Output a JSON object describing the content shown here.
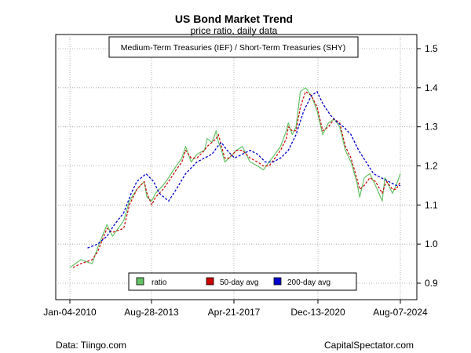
{
  "chart_data": {
    "type": "line",
    "title": "US Bond Market Trend",
    "subtitle": "price ratio, daily data",
    "annotation": "Medium-Term Treasuries (IEF) / Short-Term Treasuries (SHY)",
    "x_ticks": [
      "Jan-04-2010",
      "Aug-28-2013",
      "Apr-21-2017",
      "Dec-13-2020",
      "Aug-07-2024"
    ],
    "y_ticks": [
      0.9,
      1.0,
      1.1,
      1.2,
      1.3,
      1.4,
      1.5
    ],
    "ylim": [
      0.88,
      1.55
    ],
    "axis_side": "right",
    "grid": true,
    "legend_position": "bottom-center",
    "colors": {
      "ratio": "#66c266",
      "avg50": "#cc0000",
      "avg200": "#0000cc"
    },
    "series": [
      {
        "name": "ratio",
        "style": "line",
        "x": [
          "2010-01-04",
          "2010-07-01",
          "2011-01-01",
          "2011-04-01",
          "2011-09-01",
          "2011-12-01",
          "2012-06-01",
          "2012-09-01",
          "2013-01-01",
          "2013-05-01",
          "2013-06-15",
          "2013-09-01",
          "2013-11-01",
          "2014-03-01",
          "2014-06-01",
          "2014-10-01",
          "2015-01-01",
          "2015-03-01",
          "2015-06-01",
          "2015-09-01",
          "2016-01-01",
          "2016-02-15",
          "2016-05-01",
          "2016-07-08",
          "2016-08-15",
          "2016-10-01",
          "2016-11-25",
          "2017-02-01",
          "2017-06-01",
          "2017-09-01",
          "2018-01-01",
          "2018-05-01",
          "2018-08-01",
          "2018-11-01",
          "2019-02-01",
          "2019-05-01",
          "2019-08-01",
          "2019-09-01",
          "2019-11-01",
          "2020-01-01",
          "2020-03-09",
          "2020-06-01",
          "2020-09-01",
          "2020-12-01",
          "2021-03-01",
          "2021-06-01",
          "2021-09-01",
          "2021-12-01",
          "2022-01-01",
          "2022-03-01",
          "2022-06-01",
          "2022-09-01",
          "2022-10-20",
          "2023-01-01",
          "2023-04-01",
          "2023-07-01",
          "2023-10-19",
          "2023-12-01",
          "2024-01-01",
          "2024-04-01",
          "2024-06-01",
          "2024-08-07"
        ],
        "values": [
          0.94,
          0.96,
          0.95,
          0.99,
          1.05,
          1.02,
          1.06,
          1.11,
          1.14,
          1.16,
          1.12,
          1.11,
          1.13,
          1.15,
          1.17,
          1.2,
          1.22,
          1.25,
          1.21,
          1.23,
          1.24,
          1.27,
          1.26,
          1.29,
          1.26,
          1.24,
          1.21,
          1.22,
          1.24,
          1.25,
          1.21,
          1.2,
          1.19,
          1.21,
          1.23,
          1.25,
          1.29,
          1.31,
          1.28,
          1.3,
          1.39,
          1.4,
          1.38,
          1.34,
          1.28,
          1.31,
          1.32,
          1.3,
          1.28,
          1.24,
          1.21,
          1.16,
          1.12,
          1.17,
          1.18,
          1.15,
          1.11,
          1.17,
          1.16,
          1.13,
          1.15,
          1.18
        ]
      },
      {
        "name": "50-day avg",
        "style": "dashed",
        "x": [
          "2010-02-24",
          "2010-07-01",
          "2011-01-01",
          "2011-04-01",
          "2011-09-01",
          "2011-12-01",
          "2012-06-01",
          "2012-09-01",
          "2013-01-01",
          "2013-05-01",
          "2013-06-15",
          "2013-09-01",
          "2013-11-01",
          "2014-03-01",
          "2014-06-01",
          "2014-10-01",
          "2015-01-01",
          "2015-03-01",
          "2015-06-01",
          "2015-09-01",
          "2016-01-01",
          "2016-02-15",
          "2016-05-01",
          "2016-07-08",
          "2016-08-15",
          "2016-10-01",
          "2016-11-25",
          "2017-02-01",
          "2017-06-01",
          "2017-09-01",
          "2018-01-01",
          "2018-05-01",
          "2018-08-01",
          "2018-11-01",
          "2019-02-01",
          "2019-05-01",
          "2019-08-01",
          "2019-09-01",
          "2019-11-01",
          "2020-01-01",
          "2020-03-09",
          "2020-06-01",
          "2020-09-01",
          "2020-12-01",
          "2021-03-01",
          "2021-06-01",
          "2021-09-01",
          "2021-12-01",
          "2022-01-01",
          "2022-03-01",
          "2022-06-01",
          "2022-09-01",
          "2022-10-20",
          "2023-01-01",
          "2023-04-01",
          "2023-07-01",
          "2023-10-19",
          "2023-12-01",
          "2024-01-01",
          "2024-04-01",
          "2024-06-01",
          "2024-08-07"
        ],
        "values": [
          0.94,
          0.95,
          0.96,
          0.98,
          1.04,
          1.03,
          1.04,
          1.1,
          1.14,
          1.16,
          1.13,
          1.1,
          1.12,
          1.14,
          1.16,
          1.19,
          1.21,
          1.24,
          1.22,
          1.22,
          1.24,
          1.25,
          1.26,
          1.27,
          1.28,
          1.25,
          1.22,
          1.22,
          1.24,
          1.24,
          1.22,
          1.21,
          1.2,
          1.2,
          1.22,
          1.24,
          1.27,
          1.3,
          1.29,
          1.29,
          1.35,
          1.39,
          1.38,
          1.35,
          1.29,
          1.3,
          1.32,
          1.31,
          1.29,
          1.25,
          1.22,
          1.17,
          1.14,
          1.15,
          1.17,
          1.16,
          1.13,
          1.15,
          1.16,
          1.14,
          1.14,
          1.16
        ]
      },
      {
        "name": "200-day avg",
        "style": "dashed",
        "x": [
          "2010-10-19",
          "2011-04-01",
          "2011-09-01",
          "2012-01-01",
          "2012-06-01",
          "2012-10-01",
          "2013-01-01",
          "2013-06-01",
          "2013-10-01",
          "2014-01-01",
          "2014-06-01",
          "2014-10-01",
          "2015-03-01",
          "2015-09-01",
          "2016-01-01",
          "2016-05-01",
          "2016-08-01",
          "2016-10-01",
          "2017-01-01",
          "2017-05-01",
          "2017-09-01",
          "2018-01-01",
          "2018-05-01",
          "2018-09-01",
          "2019-01-01",
          "2019-05-01",
          "2019-09-01",
          "2020-01-01",
          "2020-05-01",
          "2020-09-01",
          "2020-12-01",
          "2021-03-01",
          "2021-07-01",
          "2021-11-01",
          "2022-02-01",
          "2022-06-01",
          "2022-10-01",
          "2023-02-01",
          "2023-06-01",
          "2023-10-01",
          "2024-02-01",
          "2024-06-01",
          "2024-08-07"
        ],
        "values": [
          0.99,
          1.0,
          1.02,
          1.05,
          1.08,
          1.13,
          1.16,
          1.18,
          1.16,
          1.13,
          1.11,
          1.14,
          1.18,
          1.21,
          1.22,
          1.23,
          1.25,
          1.26,
          1.24,
          1.22,
          1.23,
          1.24,
          1.23,
          1.21,
          1.21,
          1.22,
          1.24,
          1.28,
          1.34,
          1.38,
          1.39,
          1.36,
          1.33,
          1.31,
          1.3,
          1.28,
          1.24,
          1.21,
          1.18,
          1.17,
          1.16,
          1.15,
          1.15
        ]
      }
    ],
    "legend": [
      "ratio",
      "50-day avg",
      "200-day avg"
    ]
  },
  "footer": {
    "left": "Data: Tiingo.com",
    "right": "CapitalSpectator.com"
  }
}
